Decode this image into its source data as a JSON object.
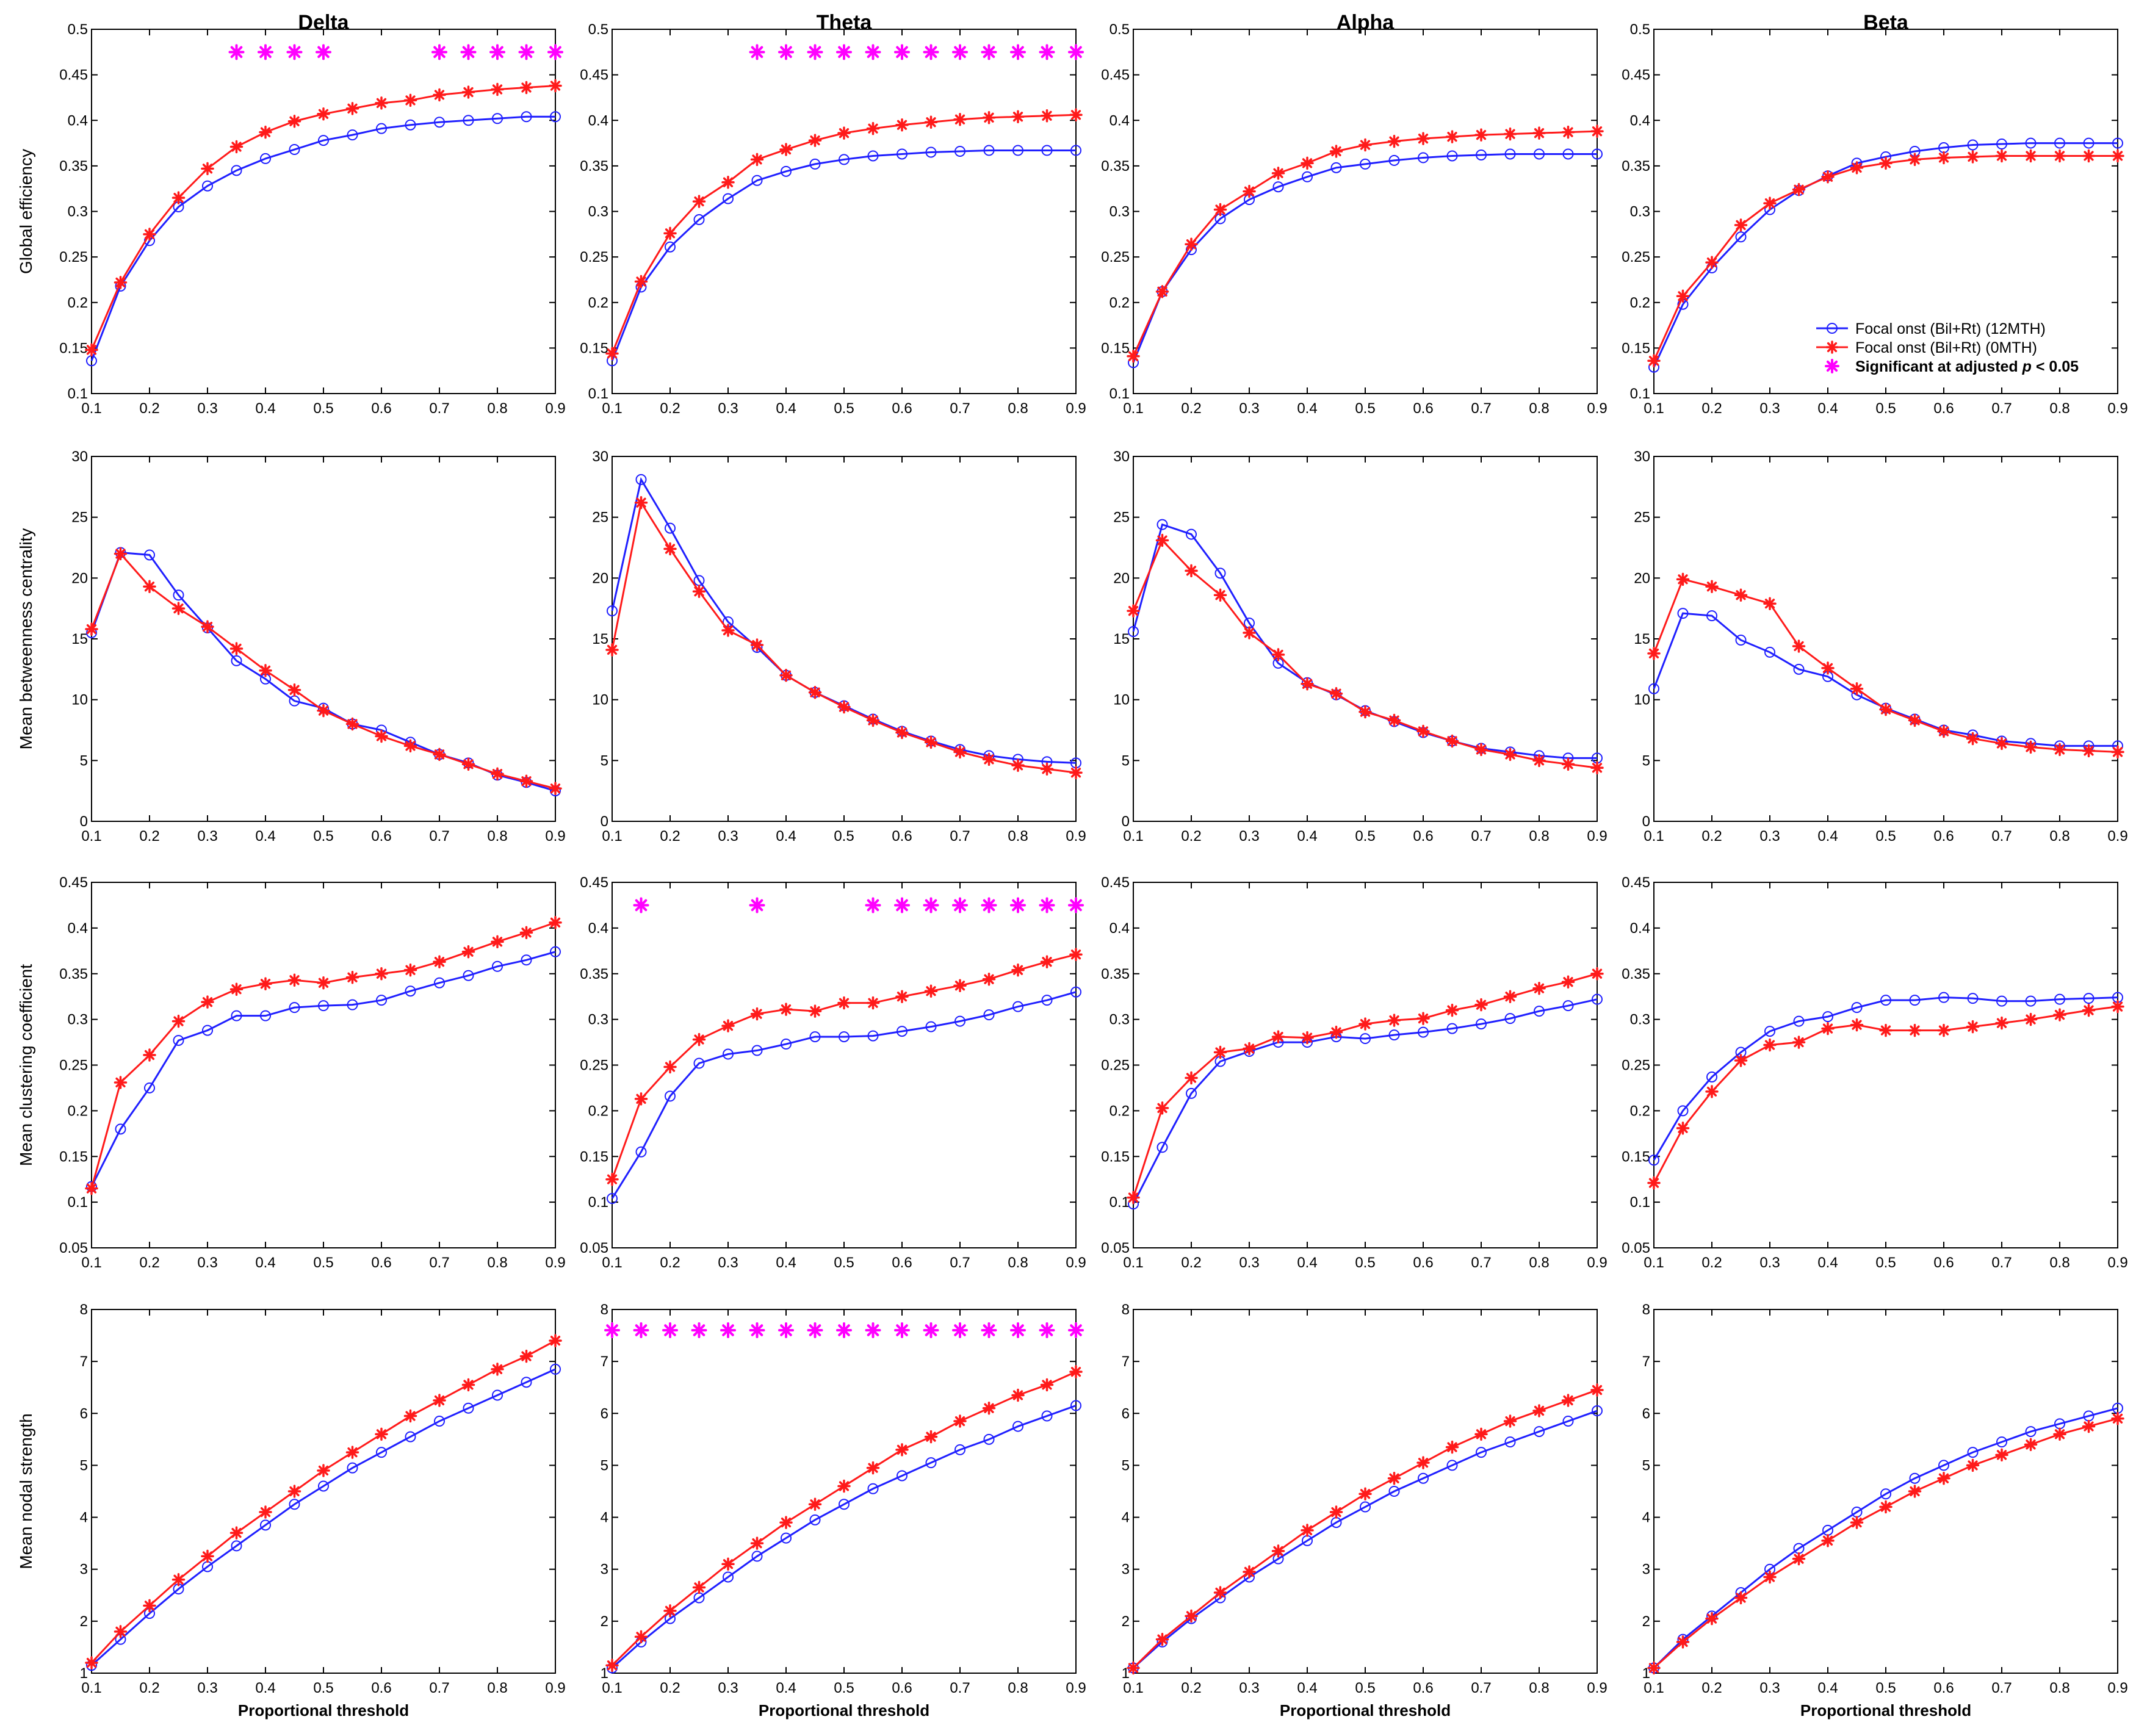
{
  "colors": {
    "series_12mth": "#1f1fff",
    "series_0mth": "#ff1a1a",
    "significance": "#ff00ff"
  },
  "chart_data": {
    "type": "line",
    "x": [
      0.1,
      0.15,
      0.2,
      0.25,
      0.3,
      0.35,
      0.4,
      0.45,
      0.5,
      0.55,
      0.6,
      0.65,
      0.7,
      0.75,
      0.8,
      0.85,
      0.9
    ],
    "xlim": [
      0.1,
      0.9
    ],
    "x_ticks": [
      0.1,
      0.2,
      0.3,
      0.4,
      0.5,
      0.6,
      0.7,
      0.8,
      0.9
    ],
    "xlabel": "Proportional threshold",
    "columns": [
      "Delta",
      "Theta",
      "Alpha",
      "Beta"
    ],
    "legend": {
      "placement": "lower-right of Global efficiency / Beta panel",
      "entries": [
        {
          "label": "Focal onst (Bil+Rt) (12MTH)",
          "marker": "circle"
        },
        {
          "label": "Focal onst (Bil+Rt) (0MTH)",
          "marker": "asterisk"
        },
        {
          "label_main": "Significant at adjusted",
          "label_italic": "p",
          "label_end": " < 0.05",
          "marker": "magenta-asterisk"
        }
      ]
    },
    "rows": [
      {
        "ylabel": "Global efficiency",
        "ylim": [
          0.1,
          0.5
        ],
        "y_ticks": [
          0.1,
          0.15,
          0.2,
          0.25,
          0.3,
          0.35,
          0.4,
          0.45,
          0.5
        ],
        "sig_y": 0.475,
        "panels": [
          {
            "band": "Delta",
            "mth12": [
              0.136,
              0.218,
              0.268,
              0.305,
              0.328,
              0.345,
              0.358,
              0.368,
              0.378,
              0.384,
              0.391,
              0.395,
              0.398,
              0.4,
              0.402,
              0.404,
              0.404
            ],
            "mth0": [
              0.148,
              0.222,
              0.275,
              0.315,
              0.347,
              0.371,
              0.387,
              0.399,
              0.407,
              0.413,
              0.419,
              0.422,
              0.428,
              0.431,
              0.434,
              0.436,
              0.438
            ],
            "significant": [
              0.35,
              0.4,
              0.45,
              0.5,
              0.7,
              0.75,
              0.8,
              0.85,
              0.9
            ]
          },
          {
            "band": "Theta",
            "mth12": [
              0.136,
              0.217,
              0.261,
              0.291,
              0.314,
              0.334,
              0.344,
              0.352,
              0.357,
              0.361,
              0.363,
              0.365,
              0.366,
              0.367,
              0.367,
              0.367,
              0.367
            ],
            "mth0": [
              0.144,
              0.223,
              0.276,
              0.311,
              0.332,
              0.357,
              0.368,
              0.378,
              0.386,
              0.391,
              0.395,
              0.398,
              0.401,
              0.403,
              0.404,
              0.405,
              0.406
            ],
            "significant": [
              0.35,
              0.4,
              0.45,
              0.5,
              0.55,
              0.6,
              0.65,
              0.7,
              0.75,
              0.8,
              0.85,
              0.9
            ]
          },
          {
            "band": "Alpha",
            "mth12": [
              0.134,
              0.212,
              0.258,
              0.292,
              0.313,
              0.327,
              0.338,
              0.348,
              0.352,
              0.356,
              0.359,
              0.361,
              0.362,
              0.363,
              0.363,
              0.363,
              0.363
            ],
            "mth0": [
              0.141,
              0.212,
              0.264,
              0.302,
              0.322,
              0.342,
              0.353,
              0.366,
              0.373,
              0.377,
              0.38,
              0.382,
              0.384,
              0.385,
              0.386,
              0.387,
              0.388
            ],
            "significant": []
          },
          {
            "band": "Beta",
            "mth12": [
              0.129,
              0.198,
              0.238,
              0.272,
              0.302,
              0.323,
              0.339,
              0.353,
              0.36,
              0.366,
              0.37,
              0.373,
              0.374,
              0.375,
              0.375,
              0.375,
              0.375
            ],
            "mth0": [
              0.136,
              0.207,
              0.244,
              0.285,
              0.309,
              0.324,
              0.338,
              0.348,
              0.353,
              0.357,
              0.359,
              0.36,
              0.361,
              0.361,
              0.361,
              0.361,
              0.361
            ],
            "significant": []
          }
        ]
      },
      {
        "ylabel": "Mean betweenness centrality",
        "ylim": [
          0,
          30
        ],
        "y_ticks": [
          0,
          5,
          10,
          15,
          20,
          25,
          30
        ],
        "sig_y": 28.5,
        "panels": [
          {
            "band": "Delta",
            "mth12": [
              15.5,
              22.1,
              21.9,
              18.6,
              15.9,
              13.2,
              11.7,
              9.9,
              9.3,
              8.0,
              7.5,
              6.5,
              5.5,
              4.8,
              3.8,
              3.2,
              2.5
            ],
            "mth0": [
              15.8,
              22.0,
              19.3,
              17.5,
              16.0,
              14.2,
              12.4,
              10.8,
              9.1,
              8.0,
              7.0,
              6.2,
              5.5,
              4.7,
              3.9,
              3.3,
              2.7
            ],
            "significant": []
          },
          {
            "band": "Theta",
            "mth12": [
              17.3,
              28.1,
              24.1,
              19.8,
              16.4,
              14.3,
              12.0,
              10.6,
              9.5,
              8.4,
              7.4,
              6.6,
              5.9,
              5.4,
              5.1,
              4.9,
              4.8
            ],
            "mth0": [
              14.1,
              26.2,
              22.4,
              18.9,
              15.7,
              14.5,
              12.0,
              10.6,
              9.4,
              8.3,
              7.3,
              6.5,
              5.7,
              5.1,
              4.6,
              4.3,
              4.0
            ],
            "significant": []
          },
          {
            "band": "Alpha",
            "mth12": [
              15.6,
              24.4,
              23.6,
              20.4,
              16.3,
              13.0,
              11.4,
              10.4,
              9.1,
              8.2,
              7.3,
              6.6,
              6.0,
              5.7,
              5.4,
              5.2,
              5.2
            ],
            "mth0": [
              17.3,
              23.1,
              20.6,
              18.6,
              15.5,
              13.7,
              11.3,
              10.5,
              9.0,
              8.3,
              7.4,
              6.6,
              5.9,
              5.5,
              5.0,
              4.7,
              4.4
            ],
            "significant": []
          },
          {
            "band": "Beta",
            "mth12": [
              10.9,
              17.1,
              16.9,
              14.9,
              13.9,
              12.5,
              11.9,
              10.4,
              9.3,
              8.4,
              7.5,
              7.1,
              6.6,
              6.4,
              6.2,
              6.2,
              6.2
            ],
            "mth0": [
              13.8,
              19.9,
              19.3,
              18.6,
              17.9,
              14.4,
              12.6,
              10.9,
              9.2,
              8.3,
              7.4,
              6.8,
              6.4,
              6.1,
              5.9,
              5.8,
              5.7
            ],
            "significant": []
          }
        ]
      },
      {
        "ylabel": "Mean clustering coefficient",
        "ylim": [
          0.05,
          0.45
        ],
        "y_ticks": [
          0.05,
          0.1,
          0.15,
          0.2,
          0.25,
          0.3,
          0.35,
          0.4,
          0.45
        ],
        "sig_y": 0.425,
        "panels": [
          {
            "band": "Delta",
            "mth12": [
              0.117,
              0.18,
              0.225,
              0.277,
              0.288,
              0.304,
              0.304,
              0.313,
              0.315,
              0.316,
              0.321,
              0.331,
              0.34,
              0.348,
              0.358,
              0.365,
              0.374
            ],
            "mth0": [
              0.115,
              0.231,
              0.261,
              0.298,
              0.319,
              0.333,
              0.339,
              0.343,
              0.34,
              0.346,
              0.35,
              0.354,
              0.363,
              0.374,
              0.385,
              0.395,
              0.406
            ],
            "significant": []
          },
          {
            "band": "Theta",
            "mth12": [
              0.104,
              0.155,
              0.216,
              0.252,
              0.262,
              0.266,
              0.273,
              0.281,
              0.281,
              0.282,
              0.287,
              0.292,
              0.298,
              0.305,
              0.314,
              0.321,
              0.33
            ],
            "mth0": [
              0.125,
              0.213,
              0.248,
              0.278,
              0.293,
              0.306,
              0.311,
              0.309,
              0.318,
              0.318,
              0.325,
              0.331,
              0.337,
              0.344,
              0.354,
              0.363,
              0.371
            ],
            "significant": [
              0.15,
              0.35,
              0.55,
              0.6,
              0.65,
              0.7,
              0.75,
              0.8,
              0.85,
              0.9
            ]
          },
          {
            "band": "Alpha",
            "mth12": [
              0.098,
              0.16,
              0.219,
              0.254,
              0.265,
              0.275,
              0.275,
              0.281,
              0.279,
              0.283,
              0.286,
              0.29,
              0.295,
              0.301,
              0.309,
              0.315,
              0.322
            ],
            "mth0": [
              0.105,
              0.203,
              0.236,
              0.264,
              0.268,
              0.281,
              0.28,
              0.286,
              0.295,
              0.299,
              0.301,
              0.31,
              0.316,
              0.325,
              0.334,
              0.341,
              0.35
            ],
            "significant": []
          },
          {
            "band": "Beta",
            "mth12": [
              0.146,
              0.2,
              0.237,
              0.264,
              0.287,
              0.298,
              0.303,
              0.313,
              0.321,
              0.321,
              0.324,
              0.323,
              0.32,
              0.32,
              0.322,
              0.323,
              0.324
            ],
            "mth0": [
              0.121,
              0.181,
              0.221,
              0.255,
              0.272,
              0.275,
              0.29,
              0.294,
              0.288,
              0.288,
              0.288,
              0.292,
              0.296,
              0.3,
              0.305,
              0.31,
              0.314
            ],
            "significant": []
          }
        ]
      },
      {
        "ylabel": "Mean nodal strength",
        "ylim": [
          1,
          8
        ],
        "y_ticks": [
          1,
          2,
          3,
          4,
          5,
          6,
          7,
          8
        ],
        "sig_y": 7.6,
        "panels": [
          {
            "band": "Delta",
            "mth12": [
              1.15,
              1.65,
              2.15,
              2.62,
              3.05,
              3.45,
              3.85,
              4.25,
              4.6,
              4.95,
              5.25,
              5.55,
              5.85,
              6.1,
              6.35,
              6.6,
              6.85
            ],
            "mth0": [
              1.2,
              1.8,
              2.3,
              2.8,
              3.25,
              3.7,
              4.1,
              4.5,
              4.9,
              5.25,
              5.6,
              5.95,
              6.25,
              6.55,
              6.85,
              7.1,
              7.4
            ],
            "significant": []
          },
          {
            "band": "Theta",
            "mth12": [
              1.1,
              1.6,
              2.05,
              2.45,
              2.85,
              3.25,
              3.6,
              3.95,
              4.25,
              4.55,
              4.8,
              5.05,
              5.3,
              5.5,
              5.75,
              5.95,
              6.15
            ],
            "mth0": [
              1.15,
              1.7,
              2.2,
              2.65,
              3.1,
              3.5,
              3.9,
              4.25,
              4.6,
              4.95,
              5.3,
              5.55,
              5.85,
              6.1,
              6.35,
              6.55,
              6.8
            ],
            "significant": [
              0.1,
              0.15,
              0.2,
              0.25,
              0.3,
              0.35,
              0.4,
              0.45,
              0.5,
              0.55,
              0.6,
              0.65,
              0.7,
              0.75,
              0.8,
              0.85,
              0.9
            ]
          },
          {
            "band": "Alpha",
            "mth12": [
              1.1,
              1.6,
              2.05,
              2.45,
              2.85,
              3.2,
              3.55,
              3.9,
              4.2,
              4.5,
              4.75,
              5.0,
              5.25,
              5.45,
              5.65,
              5.85,
              6.05
            ],
            "mth0": [
              1.1,
              1.65,
              2.1,
              2.55,
              2.95,
              3.35,
              3.75,
              4.1,
              4.45,
              4.75,
              5.05,
              5.35,
              5.6,
              5.85,
              6.05,
              6.25,
              6.45
            ],
            "significant": []
          },
          {
            "band": "Beta",
            "mth12": [
              1.1,
              1.65,
              2.1,
              2.55,
              3.0,
              3.4,
              3.75,
              4.1,
              4.45,
              4.75,
              5.0,
              5.25,
              5.45,
              5.65,
              5.8,
              5.95,
              6.1
            ],
            "mth0": [
              1.1,
              1.6,
              2.05,
              2.45,
              2.85,
              3.2,
              3.55,
              3.9,
              4.2,
              4.5,
              4.75,
              5.0,
              5.2,
              5.4,
              5.6,
              5.75,
              5.9
            ],
            "significant": []
          }
        ]
      }
    ]
  }
}
